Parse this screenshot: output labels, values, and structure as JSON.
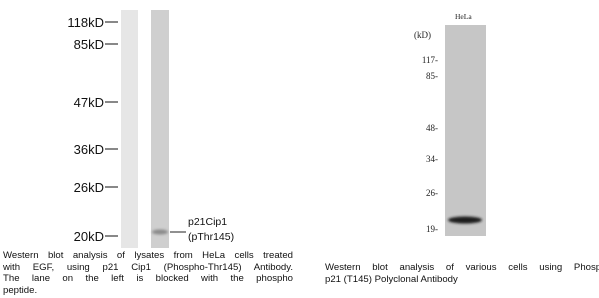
{
  "left_panel": {
    "markers": [
      "118kD",
      "85kD",
      "47kD",
      "36kD",
      "26kD",
      "20kD"
    ],
    "band_label": [
      "p21Cip1",
      "(pThr145)"
    ],
    "caption": [
      "Western blot analysis of lysates from HeLa cells treated",
      "with EGF, using p21 Cip1 (Phospho-Thr145) Antibody.",
      "The lane on the left is blocked with the phospho",
      "peptide."
    ]
  },
  "right_panel": {
    "lane_label": "HeLa",
    "unit": "(kD)",
    "markers": [
      "117-",
      "85-",
      "48-",
      "34-",
      "26-",
      "19-"
    ],
    "caption": [
      "Western blot analysis of various cells using Phospho-",
      "p21 (T145) Polyclonal Antibody"
    ]
  }
}
